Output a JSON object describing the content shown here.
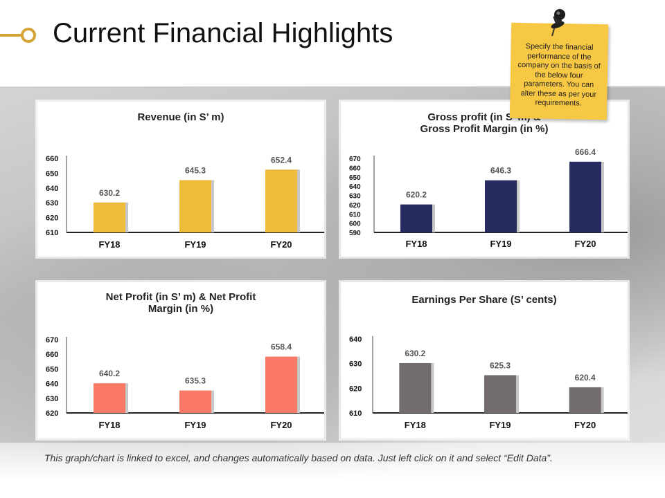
{
  "title": "Current Financial Highlights",
  "note": {
    "text": "Specify the financial performance of the company on the basis of the below four parameters. You can alter these as per your requirements."
  },
  "footer": "This graph/chart is linked to excel, and changes automatically based on data. Just left click on it and select “Edit Data”.",
  "colors": {
    "accent": "#d4a437",
    "revenue": "#efbb3a",
    "gross": "#272b5f",
    "net": "#fa7866",
    "eps": "#736c6c",
    "shadow": "#c8c8c8"
  },
  "chart_data": [
    {
      "id": "revenue",
      "type": "bar",
      "title_lines": [
        "Revenue (in S’ m)"
      ],
      "categories": [
        "FY18",
        "FY19",
        "FY20"
      ],
      "values": [
        630.2,
        645.3,
        652.4
      ],
      "labels": [
        "630.2",
        "645.3",
        "652.4"
      ],
      "ylim": [
        610,
        660
      ],
      "yticks": [
        610,
        620,
        630,
        640,
        650,
        660
      ],
      "color_key": "revenue"
    },
    {
      "id": "gross",
      "type": "bar",
      "title_lines": [
        "Gross profit (in S’ m) &",
        "Gross Profit Margin (in %)"
      ],
      "categories": [
        "FY18",
        "FY19",
        "FY20"
      ],
      "values": [
        620.2,
        646.3,
        666.4
      ],
      "labels": [
        "620.2",
        "646.3",
        "666.4"
      ],
      "ylim": [
        590,
        670
      ],
      "yticks": [
        590,
        600,
        610,
        620,
        630,
        640,
        650,
        660,
        670
      ],
      "color_key": "gross"
    },
    {
      "id": "net",
      "type": "bar",
      "title_lines": [
        "Net Profit (in S’ m) & Net Profit",
        "Margin (in %)"
      ],
      "categories": [
        "FY18",
        "FY19",
        "FY20"
      ],
      "values": [
        640.2,
        635.3,
        658.4
      ],
      "labels": [
        "640.2",
        "635.3",
        "658.4"
      ],
      "ylim": [
        620,
        670
      ],
      "yticks": [
        620,
        630,
        640,
        650,
        660,
        670
      ],
      "color_key": "net"
    },
    {
      "id": "eps",
      "type": "bar",
      "title_lines": [
        "Earnings Per Share (S’ cents)"
      ],
      "categories": [
        "FY18",
        "FY19",
        "FY20"
      ],
      "values": [
        630.2,
        625.3,
        620.4
      ],
      "labels": [
        "630.2",
        "625.3",
        "620.4"
      ],
      "ylim": [
        610,
        640
      ],
      "yticks": [
        610,
        620,
        630,
        640
      ],
      "color_key": "eps"
    }
  ]
}
